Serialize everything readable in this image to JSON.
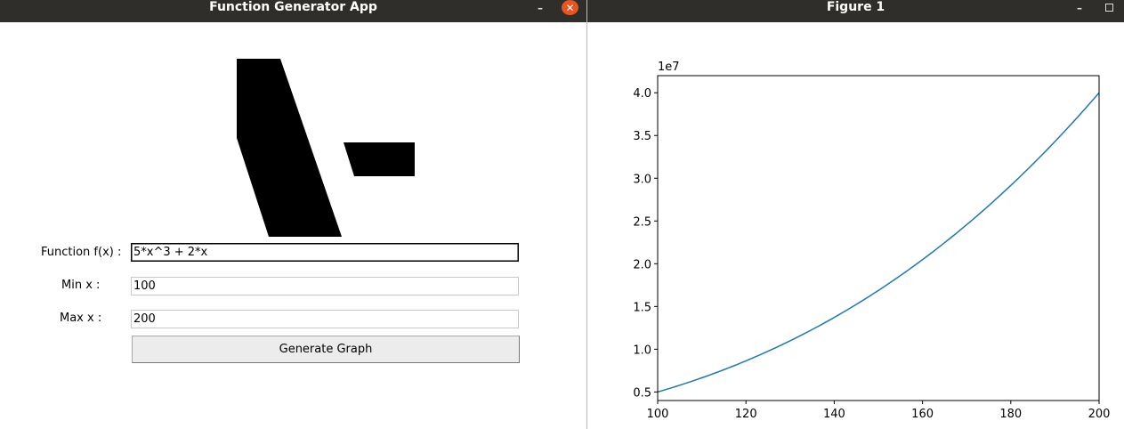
{
  "app_window": {
    "title": "Function Generator App",
    "function_label": "Function f(x) :",
    "function_value": "5*x^3 + 2*x",
    "min_label": "Min x :",
    "min_value": "100",
    "max_label": "Max x :",
    "max_value": "200",
    "generate_button_label": "Generate Graph",
    "logo_icon": "logo-icon",
    "close_icon": "close-icon",
    "minimize_icon": "minimize-icon",
    "close_button_color": "#e95420"
  },
  "figure_window": {
    "title": "Figure 1",
    "minimize_icon": "minimize-icon",
    "maximize_icon": "maximize-icon"
  },
  "chart_data": {
    "type": "line",
    "function": "5*x^3 + 2*x",
    "x": [
      100,
      110,
      120,
      130,
      140,
      150,
      160,
      170,
      180,
      190,
      200
    ],
    "y": [
      5000200,
      6655220,
      8640240,
      10985260,
      13720280,
      16875300,
      20480320,
      24565340,
      29160360,
      34295380,
      40000400
    ],
    "xlim": [
      100,
      200
    ],
    "ylim": [
      4000000.0,
      42000000.0
    ],
    "x_ticks": [
      "100",
      "120",
      "140",
      "160",
      "180",
      "200"
    ],
    "y_ticks": [
      "0.5",
      "1.0",
      "1.5",
      "2.0",
      "2.5",
      "3.0",
      "3.5",
      "4.0"
    ],
    "y_offset_label": "1e7",
    "line_color": "#1f77b4",
    "grid": false,
    "title": "",
    "xlabel": "",
    "ylabel": ""
  }
}
